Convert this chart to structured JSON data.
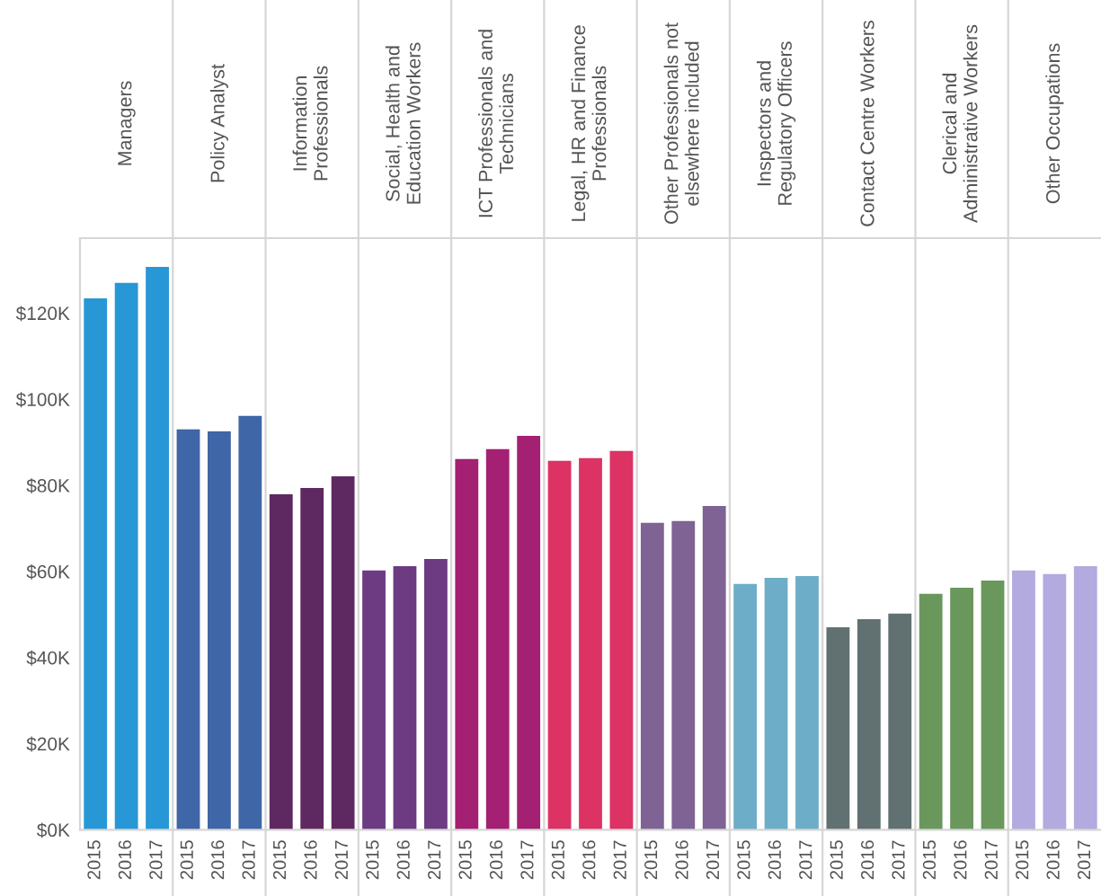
{
  "chart_data": {
    "type": "bar",
    "categories": [
      "2015",
      "2016",
      "2017",
      "2015",
      "2016",
      "2017",
      "2015",
      "2016",
      "2017",
      "2015",
      "2016",
      "2017",
      "2015",
      "2016",
      "2017",
      "2015",
      "2016",
      "2017",
      "2015",
      "2016",
      "2017",
      "2015",
      "2016",
      "2017",
      "2015",
      "2016",
      "2017",
      "2015",
      "2016",
      "2017",
      "2015",
      "2016",
      "2017"
    ],
    "values": [
      123400,
      127000,
      130700,
      93000,
      92500,
      96100,
      77900,
      79400,
      82100,
      60200,
      61200,
      62900,
      86100,
      88400,
      91500,
      85700,
      86300,
      88000,
      71300,
      71700,
      75200,
      57100,
      58500,
      58900,
      47000,
      48900,
      50200,
      54800,
      56200,
      57900,
      60200,
      59400,
      61200
    ],
    "colors": [
      "#2897d5",
      "#2897d5",
      "#2897d5",
      "#3f66a7",
      "#3f66a7",
      "#3f66a7",
      "#5e2961",
      "#5e2961",
      "#5e2961",
      "#6c3b82",
      "#6c3b82",
      "#6c3b82",
      "#a32073",
      "#a32073",
      "#a32073",
      "#dc3264",
      "#dc3264",
      "#dc3264",
      "#7e6394",
      "#7e6394",
      "#7e6394",
      "#6eadc7",
      "#6eadc7",
      "#6eadc7",
      "#617070",
      "#617070",
      "#617070",
      "#6a975b",
      "#6a975b",
      "#6a975b",
      "#b3aae0",
      "#b3aae0",
      "#b3aae0"
    ],
    "ylim": [
      0,
      137400
    ],
    "yticks": [
      {
        "value": 0,
        "label": "$0K"
      },
      {
        "value": 20000,
        "label": "$20K"
      },
      {
        "value": 40000,
        "label": "$40K"
      },
      {
        "value": 60000,
        "label": "$60K"
      },
      {
        "value": 80000,
        "label": "$80K"
      },
      {
        "value": 100000,
        "label": "$100K"
      },
      {
        "value": 120000,
        "label": "$120K"
      }
    ],
    "grid": "x",
    "annotations": [
      "Managers",
      "Policy Analyst",
      "Information\nProfessionals",
      "Social, Health and\nEducation Workers",
      "ICT Professionals and\nTechnicians",
      "Legal, HR and Finance\nProfessionals",
      "Other Professionals not\nelsewhere included",
      "Inspectors and\nRegulatory Officers",
      "Contact Centre Workers",
      "Clerical and\nAdministrative Workers",
      "Other Occupations"
    ]
  }
}
